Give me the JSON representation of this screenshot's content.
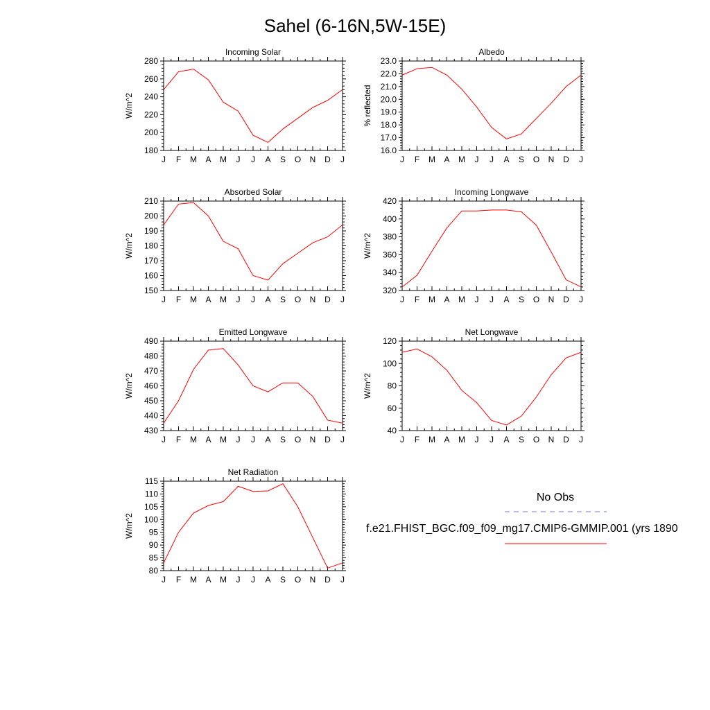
{
  "title": "Sahel (6-16N,5W-15E)",
  "months": [
    "J",
    "F",
    "M",
    "A",
    "M",
    "J",
    "J",
    "A",
    "S",
    "O",
    "N",
    "D",
    "J"
  ],
  "series_color": "#ff0000",
  "obs_color": "#7777dd",
  "legend": {
    "obs_label": "No Obs",
    "model_label": "f.e21.FHIST_BGC.f09_f09_mg17.CMIP6-GMMIP.001 (yrs 1890"
  },
  "chart_data": [
    {
      "type": "line",
      "title": "Incoming Solar",
      "ylabel": "W/m^2",
      "ylim": [
        180,
        280
      ],
      "yticks": [
        180,
        200,
        220,
        240,
        260,
        280
      ],
      "x": [
        "J",
        "F",
        "M",
        "A",
        "M",
        "J",
        "J",
        "A",
        "S",
        "O",
        "N",
        "D",
        "J"
      ],
      "series": [
        {
          "values": [
            248,
            268,
            271,
            259,
            234,
            224,
            197,
            189,
            204,
            216,
            228,
            236,
            248
          ]
        }
      ]
    },
    {
      "type": "line",
      "title": "Albedo",
      "ylabel": "% reflected",
      "ylim": [
        16.0,
        23.0
      ],
      "yticks": [
        "16.0",
        "17.0",
        "18.0",
        "19.0",
        "20.0",
        "21.0",
        "22.0",
        "23.0"
      ],
      "x": [
        "J",
        "F",
        "M",
        "A",
        "M",
        "J",
        "J",
        "A",
        "S",
        "O",
        "N",
        "D",
        "J"
      ],
      "series": [
        {
          "values": [
            21.9,
            22.4,
            22.5,
            21.9,
            20.8,
            19.4,
            17.8,
            16.9,
            17.3,
            18.5,
            19.7,
            21.0,
            21.9
          ]
        }
      ]
    },
    {
      "type": "line",
      "title": "Absorbed Solar",
      "ylabel": "W/m^2",
      "ylim": [
        150,
        210
      ],
      "yticks": [
        150,
        160,
        170,
        180,
        190,
        200,
        210
      ],
      "x": [
        "J",
        "F",
        "M",
        "A",
        "M",
        "J",
        "J",
        "A",
        "S",
        "O",
        "N",
        "D",
        "J"
      ],
      "series": [
        {
          "values": [
            194,
            208,
            209,
            200,
            183,
            178,
            160,
            157,
            168,
            175,
            182,
            186,
            194
          ]
        }
      ]
    },
    {
      "type": "line",
      "title": "Incoming Longwave",
      "ylabel": "W/m^2",
      "ylim": [
        320,
        420
      ],
      "yticks": [
        320,
        340,
        360,
        380,
        400,
        420
      ],
      "x": [
        "J",
        "F",
        "M",
        "A",
        "M",
        "J",
        "J",
        "A",
        "S",
        "O",
        "N",
        "D",
        "J"
      ],
      "series": [
        {
          "values": [
            324,
            337,
            364,
            390,
            409,
            409,
            410,
            410,
            408,
            393,
            363,
            332,
            324
          ]
        }
      ]
    },
    {
      "type": "line",
      "title": "Emitted Longwave",
      "ylabel": "W/m^2",
      "ylim": [
        430,
        490
      ],
      "yticks": [
        430,
        440,
        450,
        460,
        470,
        480,
        490
      ],
      "x": [
        "J",
        "F",
        "M",
        "A",
        "M",
        "J",
        "J",
        "A",
        "S",
        "O",
        "N",
        "D",
        "J"
      ],
      "series": [
        {
          "values": [
            435,
            450,
            471,
            484,
            485,
            474,
            460,
            456,
            462,
            462,
            453,
            437,
            435
          ]
        }
      ]
    },
    {
      "type": "line",
      "title": "Net Longwave",
      "ylabel": "W/m^2",
      "ylim": [
        40,
        120
      ],
      "yticks": [
        40,
        60,
        80,
        100,
        120
      ],
      "x": [
        "J",
        "F",
        "M",
        "A",
        "M",
        "J",
        "J",
        "A",
        "S",
        "O",
        "N",
        "D",
        "J"
      ],
      "series": [
        {
          "values": [
            110,
            113,
            106,
            94,
            76,
            65,
            49,
            45,
            53,
            70,
            90,
            105,
            110
          ]
        }
      ]
    },
    {
      "type": "line",
      "title": "Net Radiation",
      "ylabel": "W/m^2",
      "ylim": [
        80,
        115
      ],
      "yticks": [
        80,
        85,
        90,
        95,
        100,
        105,
        110,
        115
      ],
      "x": [
        "J",
        "F",
        "M",
        "A",
        "M",
        "J",
        "J",
        "A",
        "S",
        "O",
        "N",
        "D",
        "J"
      ],
      "series": [
        {
          "values": [
            83,
            95,
            102.5,
            105.5,
            107,
            113,
            111,
            111.2,
            114,
            105,
            93,
            81,
            83
          ]
        }
      ]
    }
  ]
}
